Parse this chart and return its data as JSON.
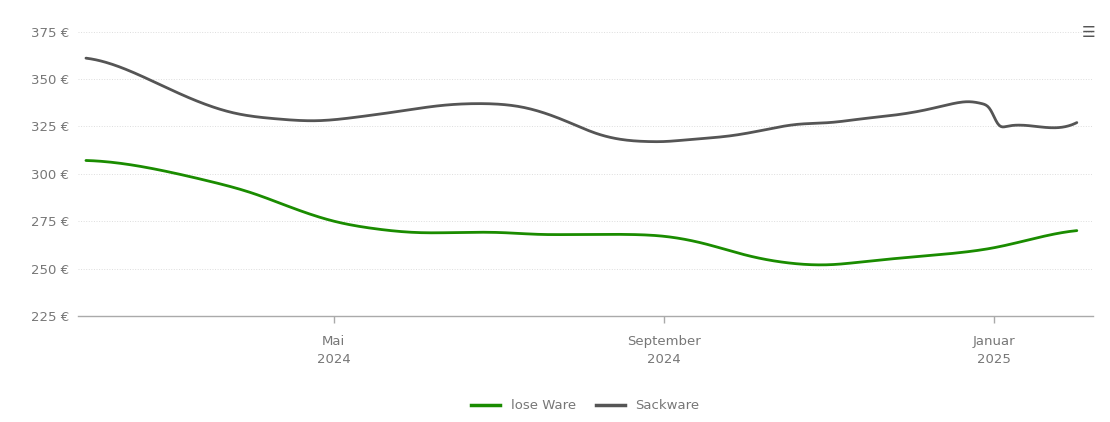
{
  "lose_ware_x": [
    0,
    0.5,
    1,
    1.5,
    2,
    2.5,
    3,
    3.5,
    4,
    4.5,
    5,
    5.5,
    6,
    6.5,
    7,
    7.5,
    8,
    8.5,
    9,
    9.5,
    10,
    10.5,
    11,
    11.5,
    12
  ],
  "lose_ware_y": [
    307,
    305,
    301,
    296,
    290,
    282,
    275,
    271,
    269,
    269,
    269,
    268,
    268,
    268,
    267,
    263,
    257,
    253,
    252,
    254,
    256,
    258,
    261,
    266,
    270
  ],
  "sackware_x": [
    0,
    0.3,
    0.7,
    1.2,
    1.8,
    2.3,
    2.8,
    3.3,
    3.8,
    4.3,
    4.8,
    5.3,
    5.8,
    6.2,
    6.5,
    6.8,
    7.0,
    7.3,
    7.8,
    8.2,
    8.6,
    9.0,
    9.4,
    9.8,
    10.2,
    10.5,
    10.7,
    10.85,
    10.95,
    11.05,
    11.15,
    11.5,
    12
  ],
  "sackware_y": [
    361,
    358,
    351,
    341,
    332,
    329,
    328,
    330,
    333,
    336,
    337,
    335,
    328,
    321,
    318,
    317,
    317,
    318,
    320,
    323,
    326,
    327,
    329,
    331,
    334,
    337,
    338,
    337,
    334,
    326,
    325,
    325,
    327
  ],
  "lose_ware_color": "#1a8c00",
  "sackware_color": "#555555",
  "background_color": "#ffffff",
  "grid_color": "#dddddd",
  "axis_color": "#aaaaaa",
  "tick_label_color": "#777777",
  "yticks": [
    225,
    250,
    275,
    300,
    325,
    350,
    375
  ],
  "ytick_labels": [
    "225 €",
    "250 €",
    "275 €",
    "300 €",
    "325 €",
    "350 €",
    "375 €"
  ],
  "xtick_positions": [
    3,
    7,
    11
  ],
  "xtick_labels_line1": [
    "Mai",
    "September",
    "Januar"
  ],
  "xtick_labels_line2": [
    "2024",
    "2024",
    "2025"
  ],
  "ylim": [
    218,
    385
  ],
  "xlim": [
    -0.1,
    12.2
  ],
  "legend_lose": "lose Ware",
  "legend_sack": "Sackware",
  "linewidth": 2.0
}
